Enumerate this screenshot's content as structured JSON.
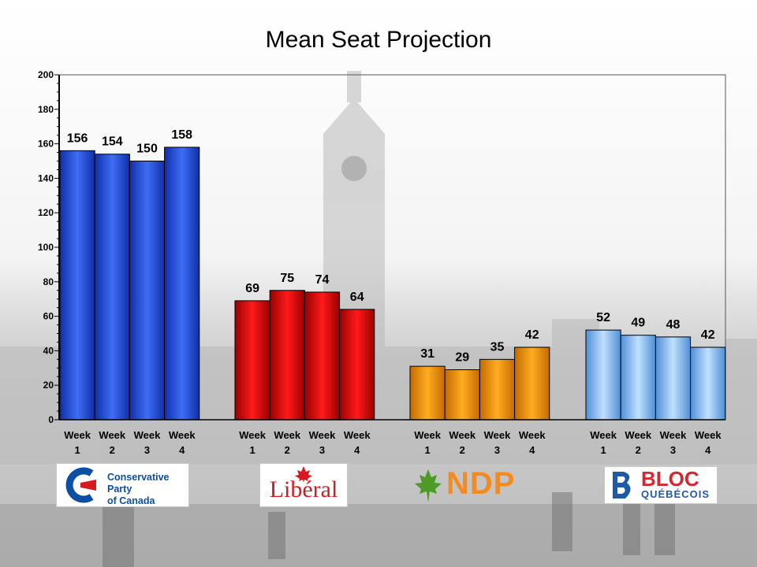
{
  "chart_data": {
    "type": "bar",
    "title": "Mean Seat Projection",
    "xlabel": "",
    "ylabel": "",
    "ylim": [
      0,
      200
    ],
    "yticks": [
      0,
      20,
      40,
      60,
      80,
      100,
      120,
      140,
      160,
      180,
      200
    ],
    "grid": false,
    "week_labels": [
      {
        "line1": "Week",
        "line2": "1"
      },
      {
        "line1": "Week",
        "line2": "2"
      },
      {
        "line1": "Week",
        "line2": "3"
      },
      {
        "line1": "Week",
        "line2": "4"
      }
    ],
    "groups": [
      {
        "party": "Conservative Party of Canada",
        "color": "#1f4fe0",
        "values": [
          156,
          154,
          150,
          158
        ]
      },
      {
        "party": "Liberal",
        "color": "#e50000",
        "values": [
          69,
          75,
          74,
          64
        ]
      },
      {
        "party": "NDP",
        "color": "#ff9a00",
        "values": [
          31,
          29,
          35,
          42
        ]
      },
      {
        "party": "Bloc Québécois",
        "color": "#8ec3f7",
        "values": [
          52,
          49,
          48,
          42
        ]
      }
    ]
  },
  "logos": {
    "cpc": {
      "line1": "Conservative Party",
      "line2": "of Canada",
      "color": "#0b4fa4"
    },
    "liberal": {
      "text": "Libéral",
      "color": "#d71920"
    },
    "ndp": {
      "text": "NDP",
      "color": "#f58a1f"
    },
    "bloc": {
      "line1": "BLOC",
      "line2": "QUÉBÉCOIS",
      "color1": "#d6262f",
      "color2": "#1f5aa8"
    }
  }
}
